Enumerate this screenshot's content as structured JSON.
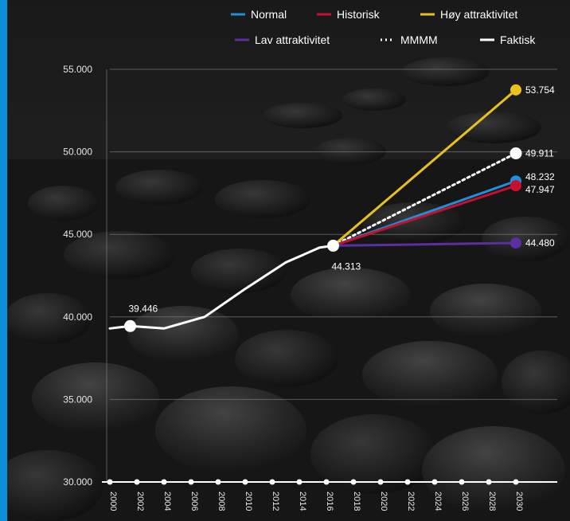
{
  "colors": {
    "accent_bar": "#0b8fd6",
    "background": "#1c1c1c",
    "axis": "#ffffff",
    "grid": "#7a7a7a"
  },
  "legend": [
    {
      "label": "Normal",
      "color": "#1e8fd8",
      "style": "solid"
    },
    {
      "label": "Historisk",
      "color": "#c8102e",
      "style": "solid"
    },
    {
      "label": "Høy attraktivitet",
      "color": "#e8c21a",
      "style": "solid"
    },
    {
      "label": "Lav attraktivitet",
      "color": "#5a2fa0",
      "style": "solid"
    },
    {
      "label": "MMMM",
      "color": "#ffffff",
      "style": "dotted"
    },
    {
      "label": "Faktisk",
      "color": "#ffffff",
      "style": "solid"
    }
  ],
  "chart_data": {
    "type": "line",
    "title": "",
    "xlabel": "",
    "ylabel": "",
    "xlim": [
      2000,
      2030
    ],
    "ylim": [
      30000,
      55000
    ],
    "y_ticks": [
      "30.000",
      "35.000",
      "40.000",
      "45.000",
      "50.000",
      "55.000"
    ],
    "y_tick_values": [
      30000,
      35000,
      40000,
      45000,
      50000,
      55000
    ],
    "x_ticks": [
      "2000",
      "2002",
      "2004",
      "2006",
      "2008",
      "2010",
      "2012",
      "2014",
      "2016",
      "2018",
      "2020",
      "2022",
      "2024",
      "2026",
      "2028",
      "2030"
    ],
    "x_tick_values": [
      2000,
      2002,
      2004,
      2006,
      2008,
      2010,
      2012,
      2014,
      2016,
      2018,
      2020,
      2022,
      2024,
      2026,
      2028,
      2030
    ],
    "grid": true,
    "legend_position": "top-right",
    "series": [
      {
        "name": "Faktisk",
        "color": "#ffffff",
        "style": "solid",
        "x": [
          2000,
          2001.5,
          2004,
          2007,
          2010,
          2013,
          2015.5,
          2016.5
        ],
        "y": [
          39300,
          39446,
          39300,
          40000,
          41700,
          43300,
          44200,
          44313
        ],
        "labeled_points": [
          {
            "x": 2001.5,
            "y": 39446,
            "label": "39.446"
          },
          {
            "x": 2016.5,
            "y": 44313,
            "label": "44.313"
          }
        ]
      },
      {
        "name": "Høy attraktivitet",
        "color": "#e8c21a",
        "style": "solid",
        "x": [
          2016.5,
          2030
        ],
        "y": [
          44313,
          53754
        ],
        "end_label": "53.754"
      },
      {
        "name": "MMMM",
        "color": "#ffffff",
        "style": "dotted",
        "x": [
          2016.5,
          2030
        ],
        "y": [
          44313,
          49911
        ],
        "end_label": "49.911"
      },
      {
        "name": "Normal",
        "color": "#1e8fd8",
        "style": "solid",
        "x": [
          2016.5,
          2030
        ],
        "y": [
          44313,
          48232
        ],
        "end_label": "48.232"
      },
      {
        "name": "Historisk",
        "color": "#c8102e",
        "style": "solid",
        "x": [
          2016.5,
          2030
        ],
        "y": [
          44313,
          47947
        ],
        "end_label": "47.947"
      },
      {
        "name": "Lav attraktivitet",
        "color": "#5a2fa0",
        "style": "solid",
        "x": [
          2016.5,
          2030
        ],
        "y": [
          44313,
          44480
        ],
        "end_label": "44.480"
      }
    ]
  }
}
